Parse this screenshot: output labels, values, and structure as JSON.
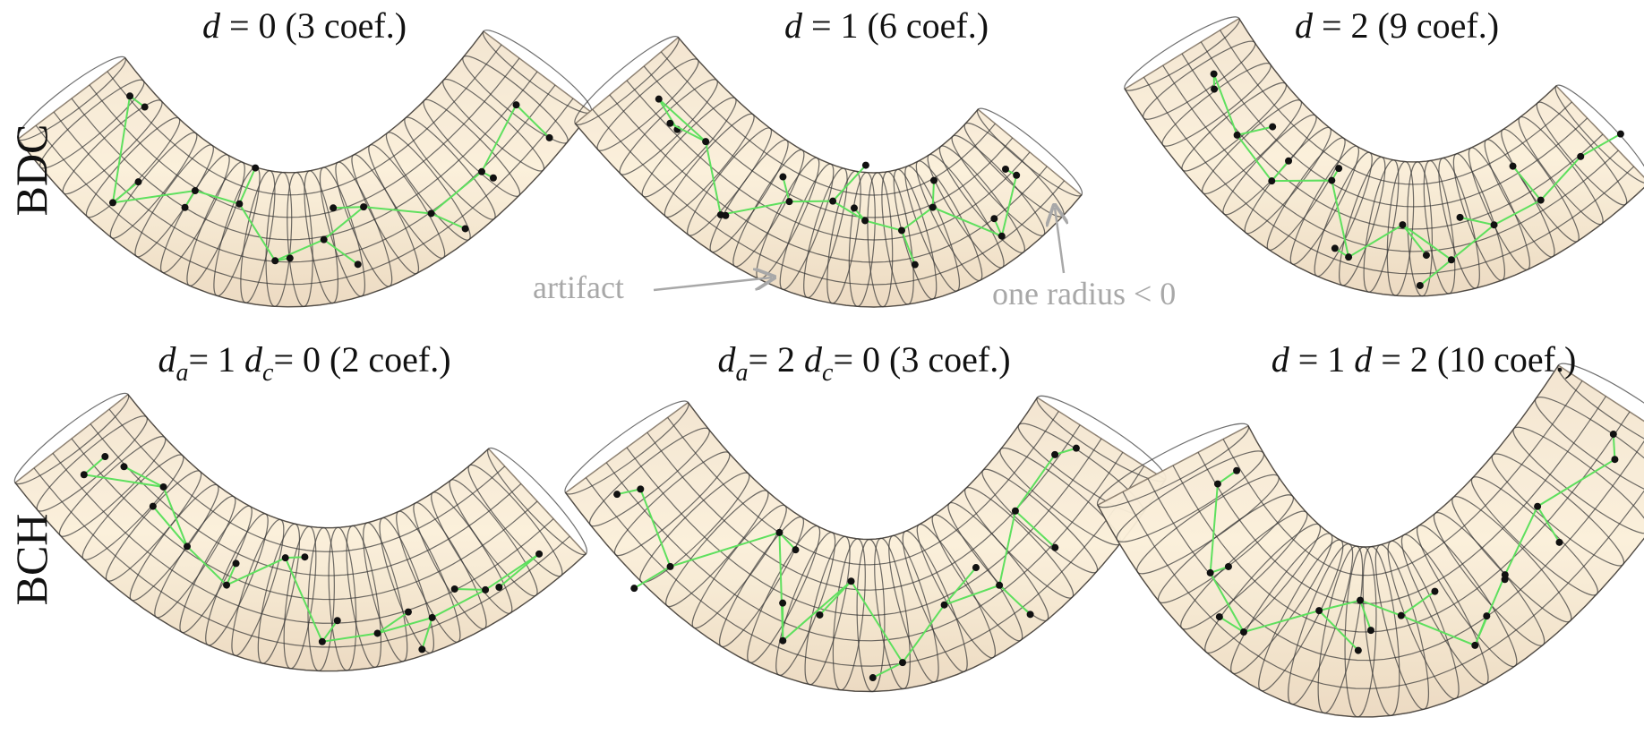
{
  "rows": [
    "BDC",
    "BCH"
  ],
  "panels": [
    {
      "title": [
        "d",
        "= 0  (3 coef.)"
      ]
    },
    {
      "title": [
        "d",
        "= 1  (6 coef.)"
      ]
    },
    {
      "title": [
        "d",
        "= 2  (9 coef.)"
      ]
    },
    {
      "title": [
        "d",
        "a",
        "= 1  ",
        "d",
        "c",
        "= 0  (2 coef.)"
      ]
    },
    {
      "title": [
        "d",
        "a",
        "= 2  ",
        "d",
        "c",
        "= 0  (3 coef.)"
      ]
    },
    {
      "title": [
        "d",
        "= 1  ",
        "d",
        "= 2  (10 coef.)"
      ]
    }
  ],
  "annotations": [
    "artifact",
    "one radius < 0"
  ]
}
